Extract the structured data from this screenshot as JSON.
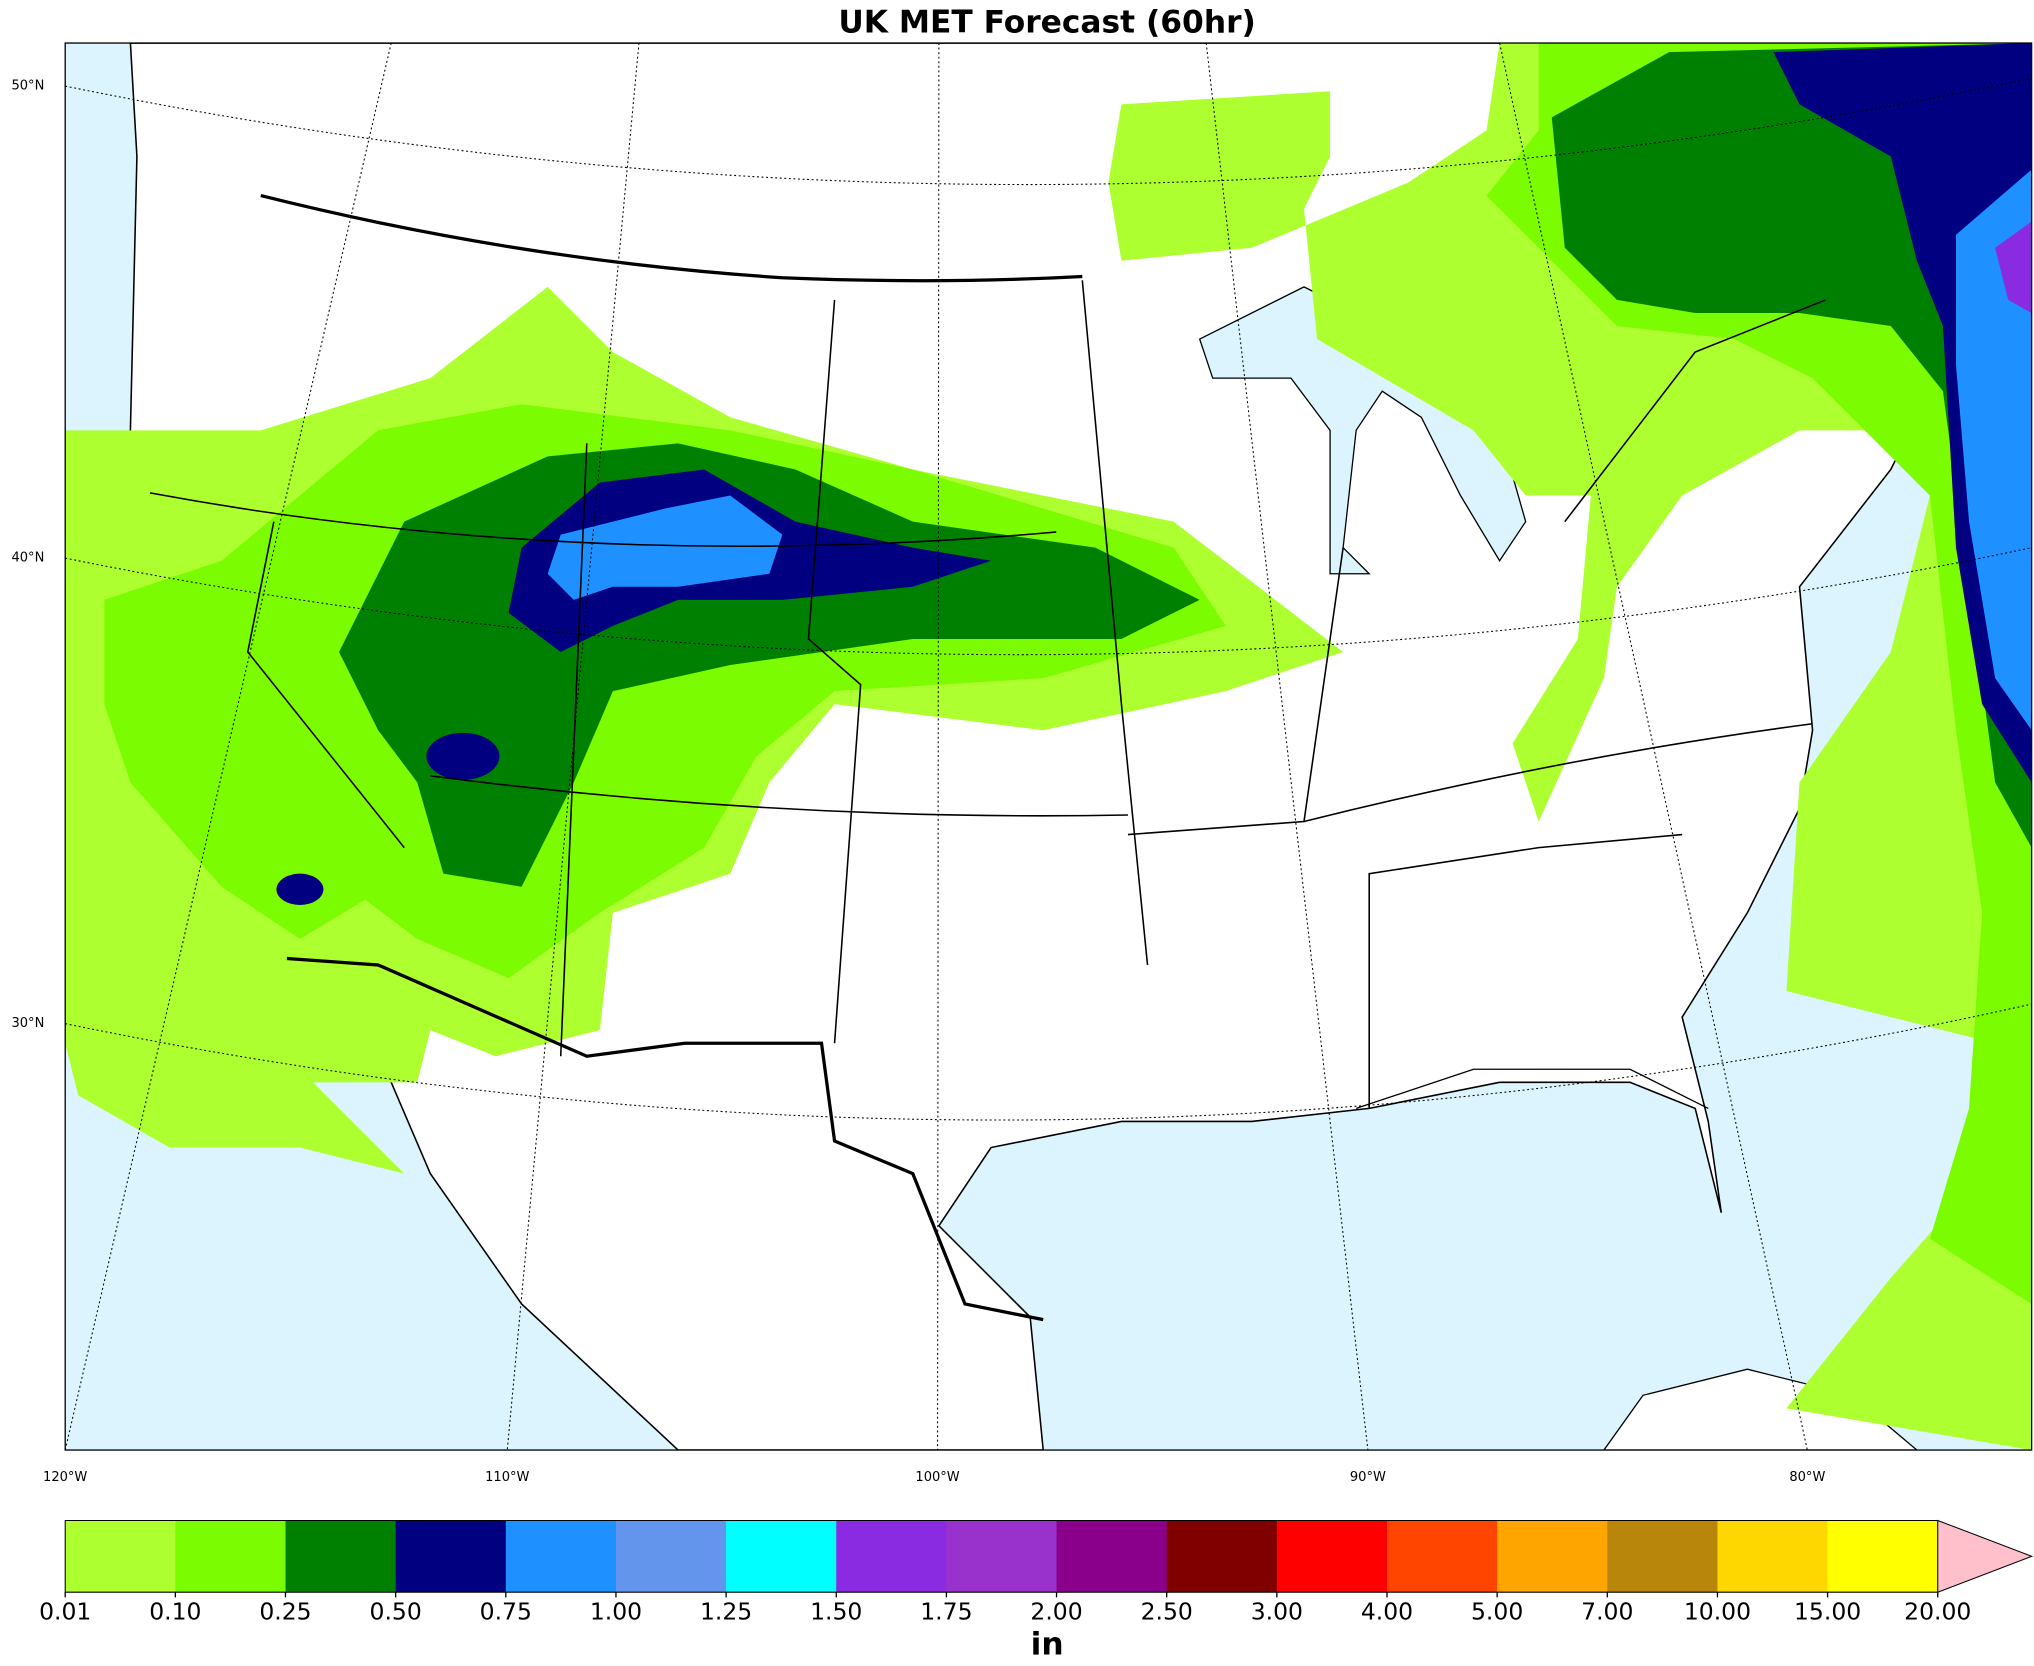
{
  "title": "UK MET Forecast (60hr)",
  "lat_labels": [
    "50°N",
    "40°N",
    "30°N"
  ],
  "lon_labels": [
    "120°W",
    "110°W",
    "100°W",
    "90°W",
    "80°W"
  ],
  "colorbar": {
    "labels": [
      "0.01",
      "0.10",
      "0.25",
      "0.50",
      "0.75",
      "1.00",
      "1.25",
      "1.50",
      "1.75",
      "2.00",
      "2.50",
      "3.00",
      "4.00",
      "5.00",
      "7.00",
      "10.00",
      "15.00",
      "20.00"
    ],
    "colors": [
      "#adff2f",
      "#7cfc00",
      "#008000",
      "#000080",
      "#1e90ff",
      "#6495ed",
      "#00ffff",
      "#8a2be2",
      "#9932cc",
      "#8b008b",
      "#800000",
      "#ff0000",
      "#ff4500",
      "#ffa500",
      "#b8860b",
      "#ffd700",
      "#ffff00"
    ],
    "extend_color": "#ffc0cb",
    "unit": "in"
  }
}
